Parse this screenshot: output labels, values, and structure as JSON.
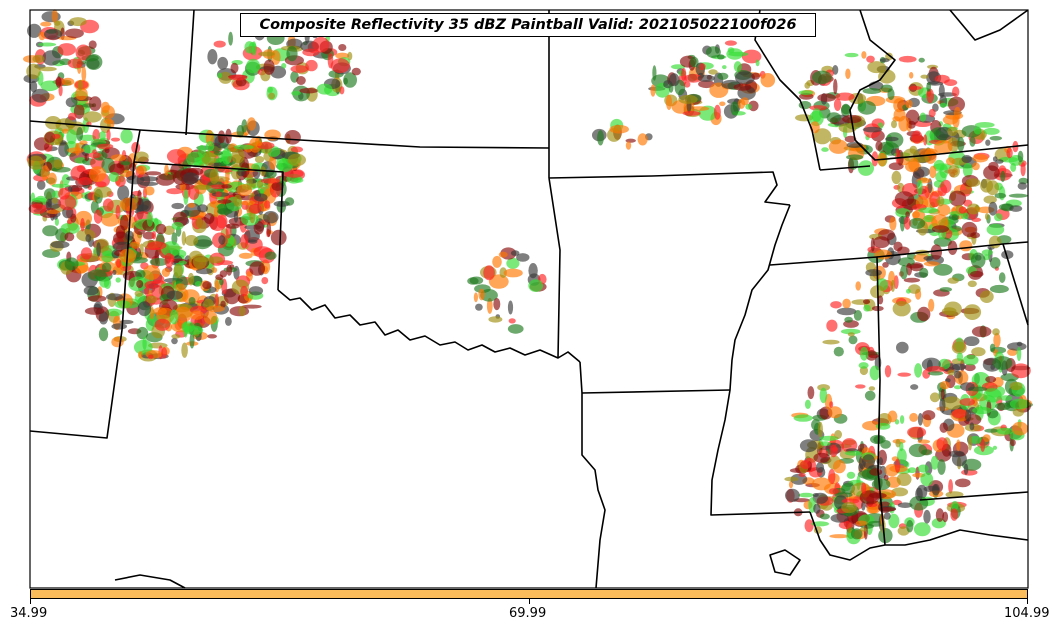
{
  "title": "Composite Reflectivity 35 dBZ Paintball Valid: 202105022100f026",
  "colorbar": {
    "color": "#fbbd5c",
    "ticks": [
      "34.99",
      "69.99",
      "104.99"
    ]
  },
  "paint_colors": [
    "#ff2222",
    "#ff7700",
    "#a08f10",
    "#1f7a1f",
    "#33dd33",
    "#8b0a0a",
    "#3a3a3a"
  ]
}
